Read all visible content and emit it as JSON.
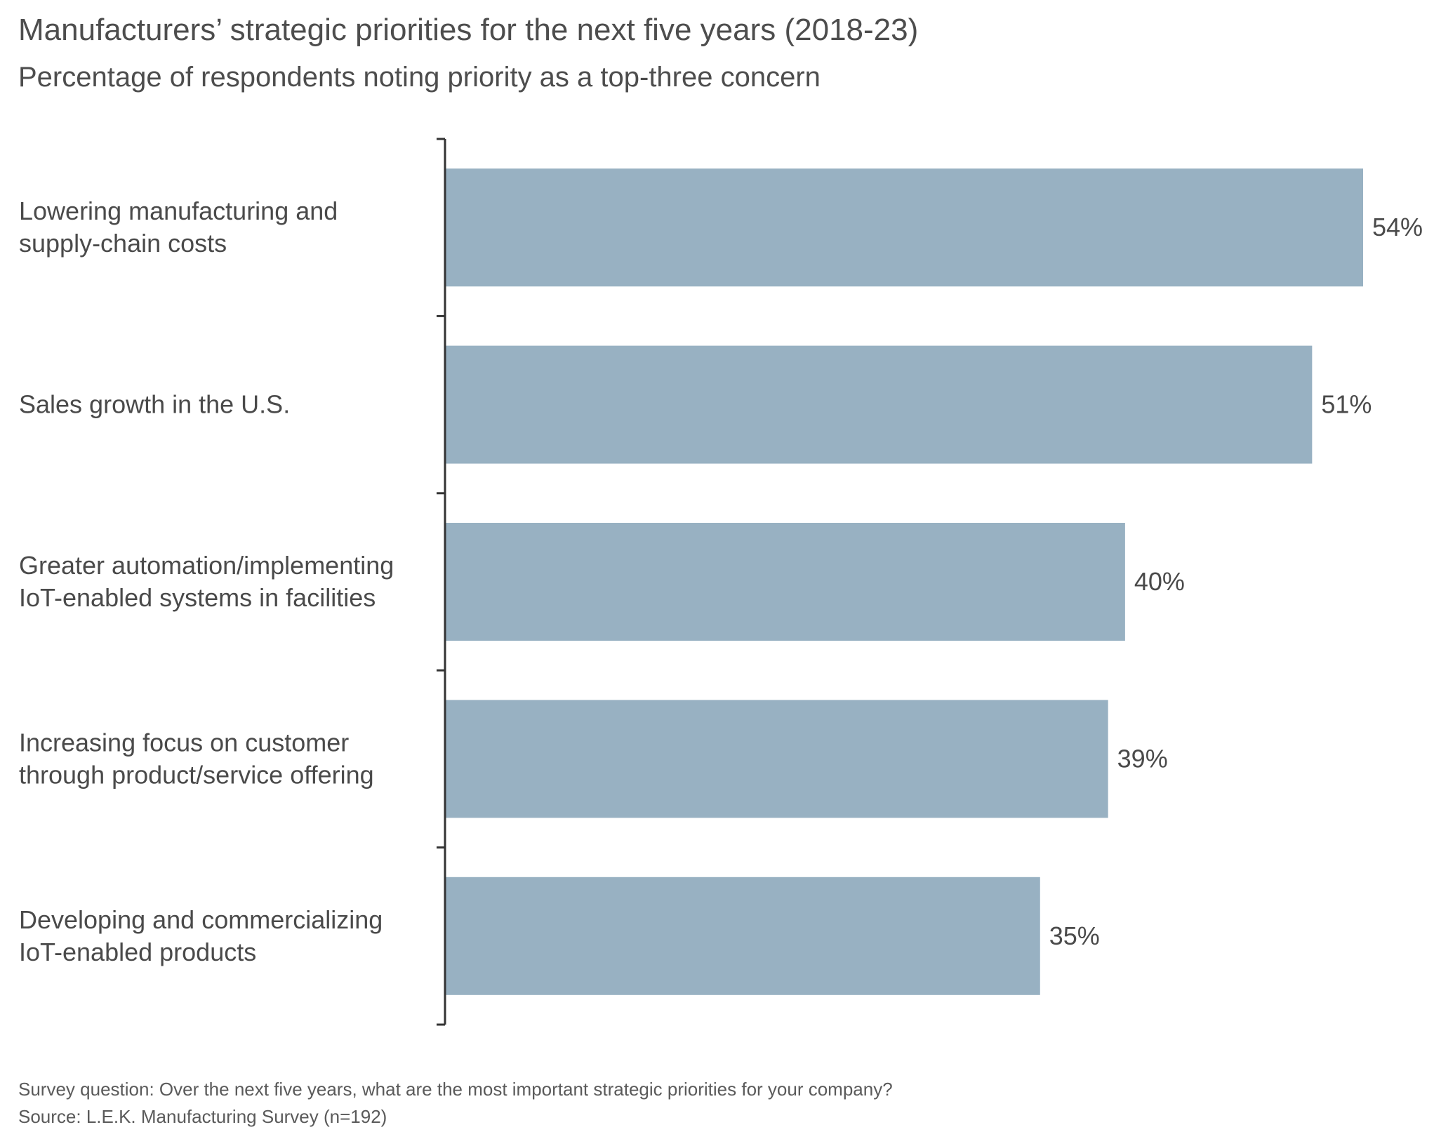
{
  "chart_data": {
    "type": "bar",
    "orientation": "horizontal",
    "title": "Manufacturers’ strategic priorities for the next five years (2018-23)",
    "subtitle": "Percentage of respondents noting priority as a top-three concern",
    "categories": [
      [
        "Lowering manufacturing and",
        "supply-chain costs"
      ],
      [
        "Sales growth in the U.S."
      ],
      [
        "Greater automation/implementing",
        "IoT-enabled systems in facilities"
      ],
      [
        "Increasing focus on customer",
        "through product/service offering"
      ],
      [
        "Developing and commercializing",
        "IoT-enabled products"
      ]
    ],
    "values": [
      54,
      51,
      40,
      39,
      35
    ],
    "data_labels": [
      "54%",
      "51%",
      "40%",
      "39%",
      "35%"
    ],
    "bar_color": "#98b1c2",
    "axis_color": "#333333",
    "xlim": [
      0,
      54
    ],
    "grid": false,
    "legend": "none"
  },
  "footnotes": {
    "question": "Survey question: Over the next five years, what are the most important strategic priorities for your company?",
    "source": "Source: L.E.K. Manufacturing Survey (n=192)"
  }
}
